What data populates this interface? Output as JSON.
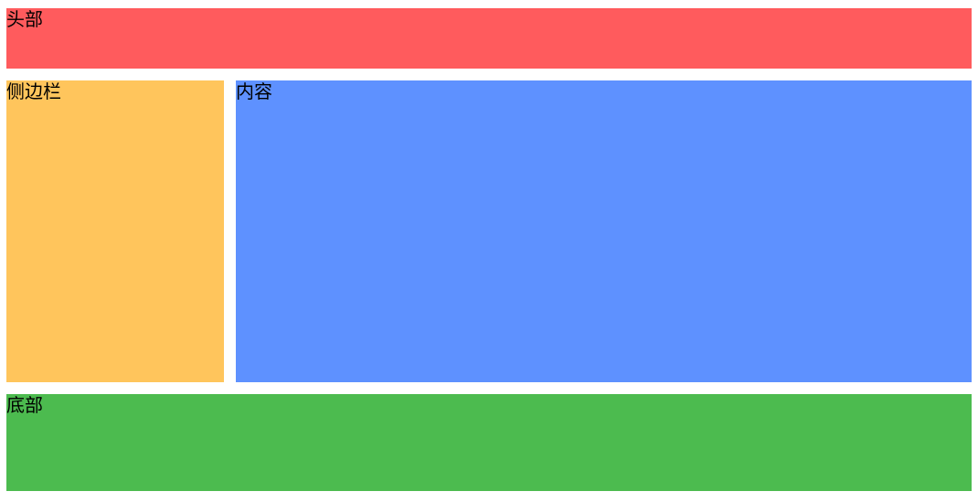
{
  "colors": {
    "header": "#ff5b5d",
    "sidebar": "#ffc55c",
    "content": "#5e91ff",
    "footer": "#4cbb4f"
  },
  "header": {
    "label": "头部"
  },
  "sidebar": {
    "label": "侧边栏"
  },
  "content": {
    "label": "内容"
  },
  "footer": {
    "label": "底部"
  }
}
